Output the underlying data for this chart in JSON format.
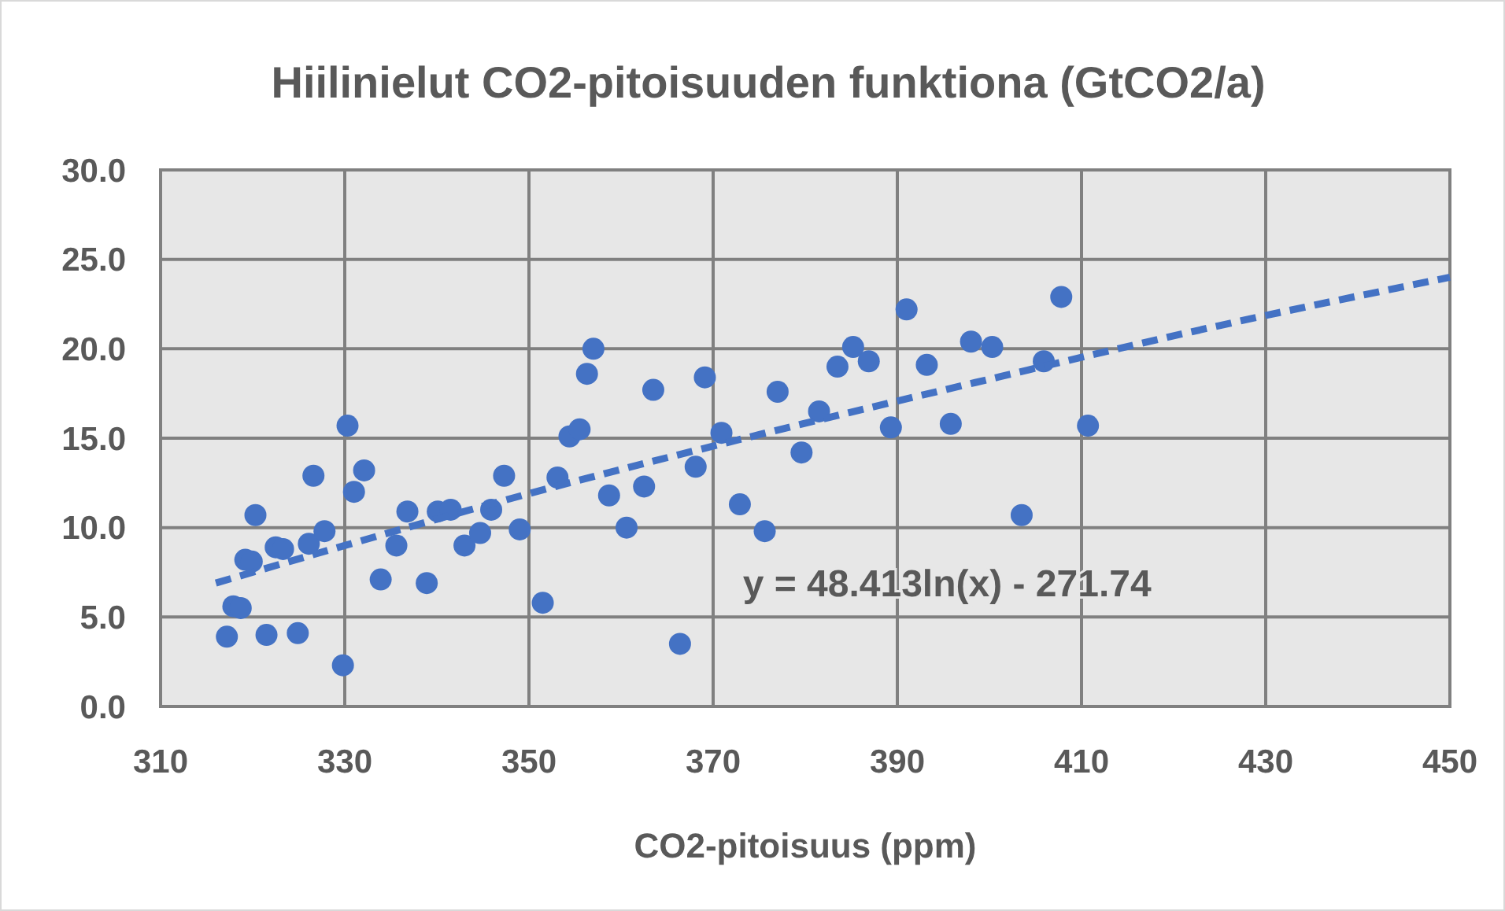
{
  "chart_data": {
    "type": "scatter",
    "title": "Hiilinielut CO2-pitoisuuden funktiona (GtCO2/a)",
    "xlabel": "CO2-pitoisuus (ppm)",
    "xlim": [
      310,
      450
    ],
    "xticks": [
      310,
      330,
      350,
      370,
      390,
      410,
      430,
      450
    ],
    "ylim": [
      0,
      30
    ],
    "yticks": [
      {
        "value": 0,
        "label": "0.0"
      },
      {
        "value": 5,
        "label": "5.0"
      },
      {
        "value": 10,
        "label": "10.0"
      },
      {
        "value": 15,
        "label": "15.0"
      },
      {
        "value": 20,
        "label": "20.0"
      },
      {
        "value": 25,
        "label": "25.0"
      },
      {
        "value": 30,
        "label": "30.0"
      }
    ],
    "grid": true,
    "marker": "circle",
    "annotations": [
      "y = 48.413ln(x) - 271.74"
    ],
    "series": [
      {
        "color": "#4472c4",
        "x": [
          317.2,
          317.9,
          318.7,
          319.2,
          319.9,
          320.3,
          321.5,
          322.5,
          323.3,
          324.9,
          326.1,
          326.6,
          327.8,
          329.8,
          330.3,
          331.0,
          332.1,
          333.9,
          335.6,
          336.8,
          338.9,
          340.1,
          341.5,
          343.0,
          344.7,
          345.9,
          347.3,
          349.0,
          351.5,
          353.1,
          354.4,
          355.5,
          356.3,
          357.0,
          358.7,
          360.6,
          362.5,
          363.5,
          366.4,
          368.1,
          369.1,
          370.9,
          372.9,
          375.6,
          377.0,
          379.6,
          381.5,
          383.5,
          385.2,
          386.9,
          389.3,
          391.0,
          393.2,
          395.8,
          398.0,
          400.3,
          403.5,
          405.9,
          407.8,
          410.7
        ],
        "values": [
          3.9,
          5.6,
          5.5,
          8.2,
          8.1,
          10.7,
          4.0,
          8.9,
          8.8,
          4.1,
          9.1,
          12.9,
          9.8,
          2.3,
          15.7,
          12.0,
          13.2,
          7.1,
          9.0,
          10.9,
          6.9,
          10.9,
          11.0,
          9.0,
          9.7,
          11.0,
          12.9,
          9.9,
          5.8,
          12.8,
          15.1,
          15.5,
          18.6,
          20.0,
          11.8,
          10.0,
          12.3,
          17.7,
          3.5,
          13.4,
          18.4,
          15.3,
          11.3,
          9.8,
          17.6,
          14.2,
          16.5,
          19.0,
          20.1,
          19.3,
          15.6,
          22.2,
          19.1,
          15.8,
          20.4,
          20.1,
          10.7,
          19.3,
          22.9,
          15.7
        ]
      },
      {
        "type": "line",
        "color": "#4472c4",
        "line_style": "dashed",
        "marker": "none",
        "x": [
          316,
          330,
          350,
          375,
          400,
          425,
          450
        ],
        "values": [
          6.9,
          9.0,
          11.9,
          15.2,
          18.3,
          21.3,
          24.0
        ]
      }
    ]
  }
}
